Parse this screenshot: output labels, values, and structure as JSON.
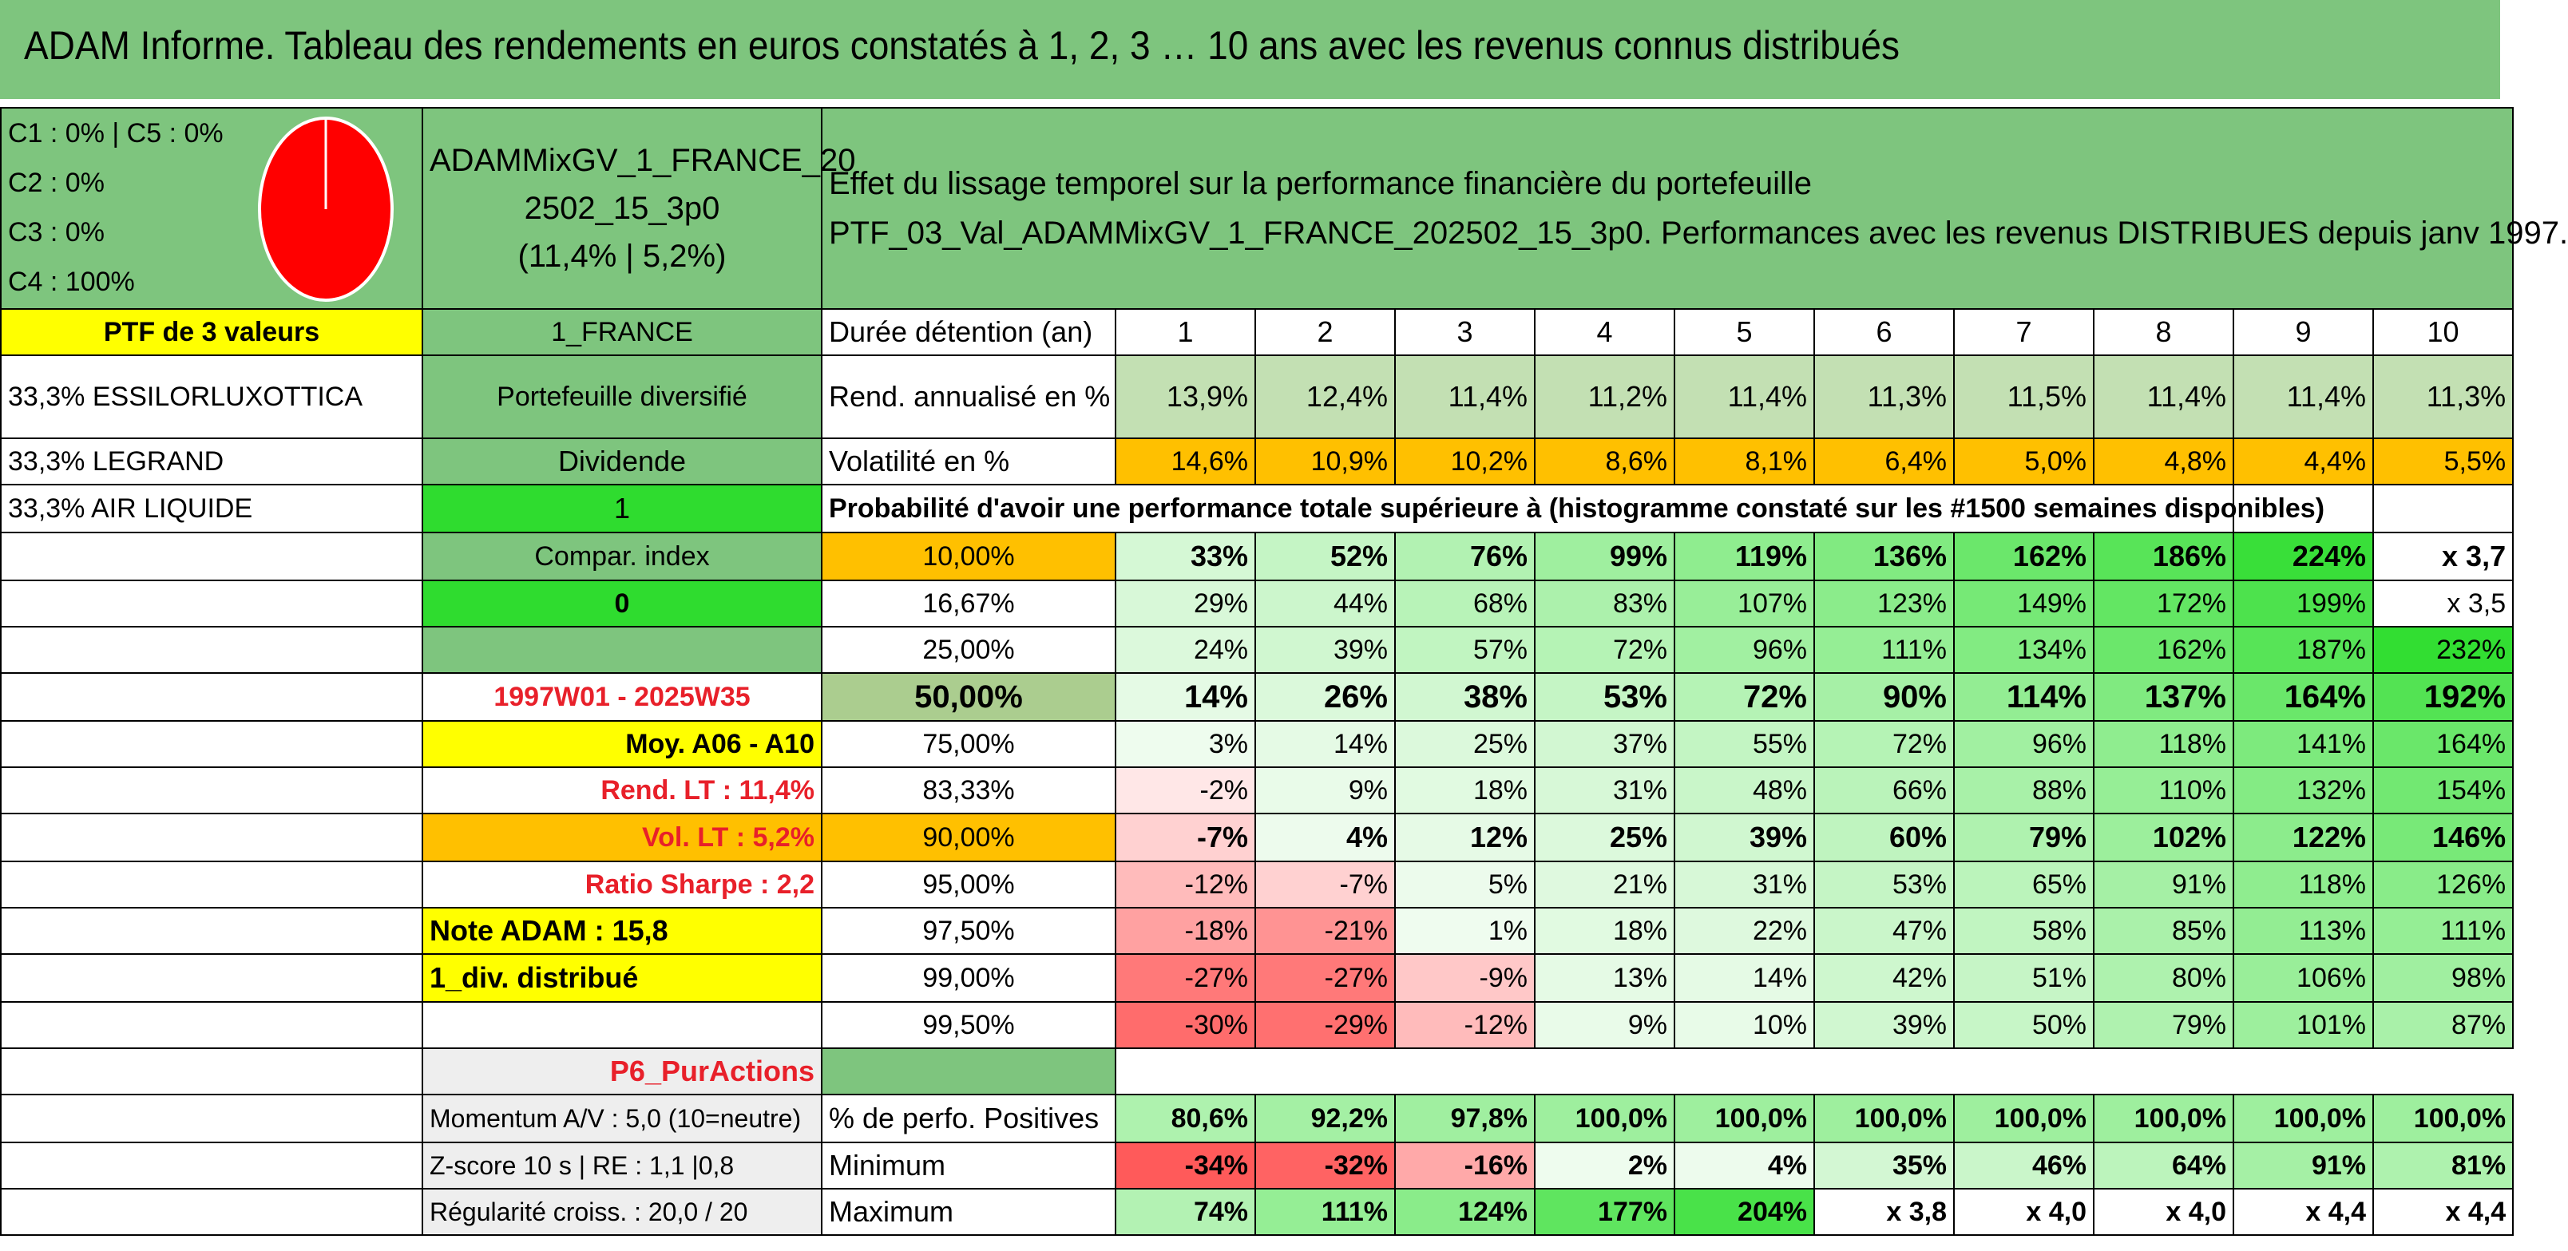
{
  "title": "ADAM Informe. Tableau des rendements en euros constatés à 1, 2, 3 … 10 ans avec les revenus connus distribués",
  "allocation": {
    "lines": [
      "C1 : 0% | C5 : 0%",
      "C2 : 0%",
      "C3 : 0%",
      "C4 : 100%"
    ],
    "pie_color": "#ff0000"
  },
  "fund": {
    "name_line1": "ADAMMixGV_1_FRANCE_20",
    "name_line2": "2502_15_3p0",
    "stats": "(11,4% | 5,2%)"
  },
  "effect": {
    "line1": "Effet du lissage temporel sur la performance financière du portefeuille",
    "line2": "PTF_03_Val_ADAMMixGV_1_FRANCE_202502_15_3p0. Performances avec les revenus DISTRIBUES depuis janv 1997."
  },
  "left": {
    "ptf_title": "PTF de 3 valeurs",
    "holdings": [
      "33,3% ESSILORLUXOTTICA",
      "33,3% LEGRAND",
      "33,3% AIR LIQUIDE"
    ]
  },
  "mid": {
    "market": "1_FRANCE",
    "diversified": "Portefeuille diversifié",
    "dividend_label": "Dividende",
    "dividend_value": "1",
    "compar_label": "Compar. index",
    "compar_value": "0",
    "period": "1997W01 - 2025W35",
    "moy": "Moy. A06 - A10",
    "rend_lt": "Rend. LT : 11,4%",
    "vol_lt": "Vol. LT : 5,2%",
    "sharpe": "Ratio Sharpe : 2,2",
    "note": "Note ADAM : 15,8",
    "div": "1_div. distribué",
    "category": "P6_PurActions",
    "momentum": "Momentum A/V : 5,0 (10=neutre)",
    "zscore": "Z-score 10 s | RE : 1,1 |0,8",
    "regularity": "Régularité croiss. : 20,0 / 20"
  },
  "grid": {
    "duration_label": "Durée détention (an)",
    "years": [
      "1",
      "2",
      "3",
      "4",
      "5",
      "6",
      "7",
      "8",
      "9",
      "10"
    ],
    "rend_label": "Rend. annualisé en %",
    "rend": [
      "13,9%",
      "12,4%",
      "11,4%",
      "11,2%",
      "11,4%",
      "11,3%",
      "11,5%",
      "11,4%",
      "11,4%",
      "11,3%"
    ],
    "vol_label": "Volatilité en %",
    "vol": [
      "14,6%",
      "10,9%",
      "10,2%",
      "8,6%",
      "8,1%",
      "6,4%",
      "5,0%",
      "4,8%",
      "4,4%",
      "5,5%"
    ],
    "prob_title": "Probabilité d'avoir une performance totale supérieure à (histogramme constaté sur les #1500 semaines disponibles)",
    "rows": [
      {
        "p": "10,00%",
        "v": [
          "33%",
          "52%",
          "76%",
          "99%",
          "119%",
          "136%",
          "162%",
          "186%",
          "224%",
          "x 3,7"
        ]
      },
      {
        "p": "16,67%",
        "v": [
          "29%",
          "44%",
          "68%",
          "83%",
          "107%",
          "123%",
          "149%",
          "172%",
          "199%",
          "x 3,5"
        ]
      },
      {
        "p": "25,00%",
        "v": [
          "24%",
          "39%",
          "57%",
          "72%",
          "96%",
          "111%",
          "134%",
          "162%",
          "187%",
          "232%"
        ]
      },
      {
        "p": "50,00%",
        "v": [
          "14%",
          "26%",
          "38%",
          "53%",
          "72%",
          "90%",
          "114%",
          "137%",
          "164%",
          "192%"
        ]
      },
      {
        "p": "75,00%",
        "v": [
          "3%",
          "14%",
          "25%",
          "37%",
          "55%",
          "72%",
          "96%",
          "118%",
          "141%",
          "164%"
        ]
      },
      {
        "p": "83,33%",
        "v": [
          "-2%",
          "9%",
          "18%",
          "31%",
          "48%",
          "66%",
          "88%",
          "110%",
          "132%",
          "154%"
        ]
      },
      {
        "p": "90,00%",
        "v": [
          "-7%",
          "4%",
          "12%",
          "25%",
          "39%",
          "60%",
          "79%",
          "102%",
          "122%",
          "146%"
        ]
      },
      {
        "p": "95,00%",
        "v": [
          "-12%",
          "-7%",
          "5%",
          "21%",
          "31%",
          "53%",
          "65%",
          "91%",
          "118%",
          "126%"
        ]
      },
      {
        "p": "97,50%",
        "v": [
          "-18%",
          "-21%",
          "1%",
          "18%",
          "22%",
          "47%",
          "58%",
          "85%",
          "113%",
          "111%"
        ]
      },
      {
        "p": "99,00%",
        "v": [
          "-27%",
          "-27%",
          "-9%",
          "13%",
          "14%",
          "42%",
          "51%",
          "80%",
          "106%",
          "98%"
        ]
      },
      {
        "p": "99,50%",
        "v": [
          "-30%",
          "-29%",
          "-12%",
          "9%",
          "10%",
          "39%",
          "50%",
          "79%",
          "101%",
          "87%"
        ]
      }
    ],
    "pos_label": "% de perfo. Positives",
    "pos": [
      "80,6%",
      "92,2%",
      "97,8%",
      "100,0%",
      "100,0%",
      "100,0%",
      "100,0%",
      "100,0%",
      "100,0%",
      "100,0%"
    ],
    "min_label": "Minimum",
    "min": [
      "-34%",
      "-32%",
      "-16%",
      "2%",
      "4%",
      "35%",
      "46%",
      "64%",
      "91%",
      "81%"
    ],
    "max_label": "Maximum",
    "max": [
      "74%",
      "111%",
      "124%",
      "177%",
      "204%",
      "x 3,8",
      "x 4,0",
      "x 4,0",
      "x 4,4",
      "x 4,4"
    ]
  }
}
